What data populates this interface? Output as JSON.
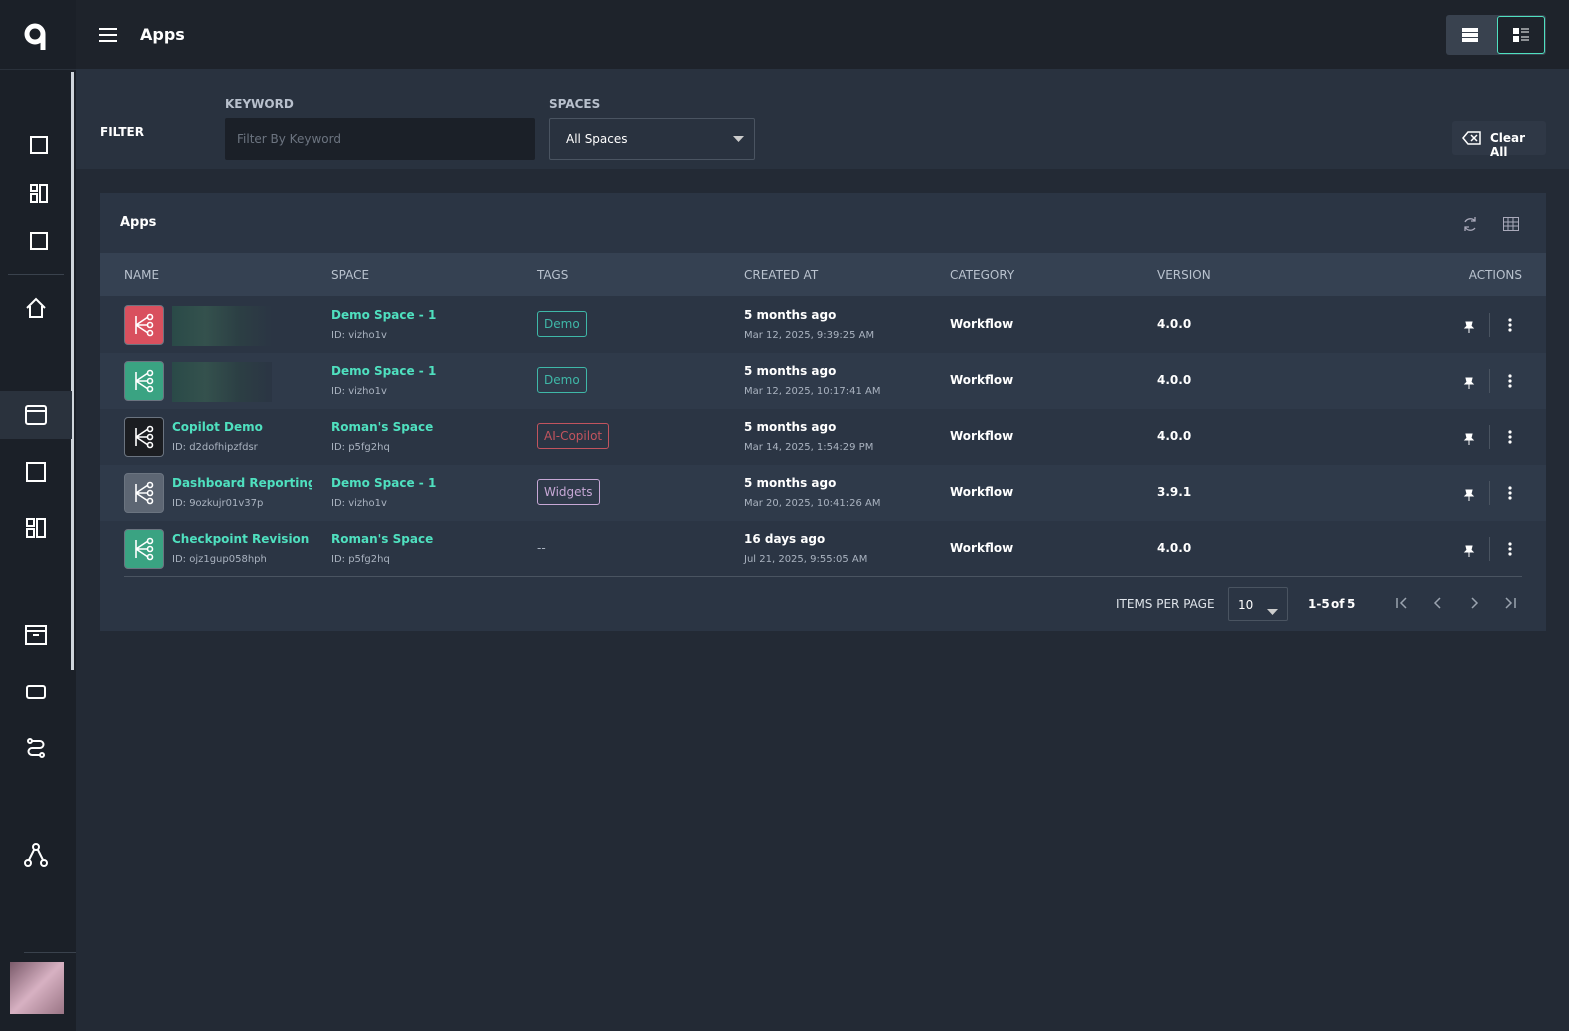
{
  "header": {
    "title": "Apps"
  },
  "filter": {
    "label": "FILTER",
    "keyword_label": "KEYWORD",
    "keyword_placeholder": "Filter By Keyword",
    "spaces_label": "SPACES",
    "spaces_value": "All Spaces",
    "clear": "Clear All"
  },
  "table": {
    "title": "Apps",
    "columns": [
      "NAME",
      "SPACE",
      "TAGS",
      "CREATED AT",
      "CATEGORY",
      "VERSION",
      "ACTIONS"
    ],
    "rows": [
      {
        "icon_color": "#d9505e",
        "space": "Demo Space - 1",
        "space_id": "ID: vizho1v",
        "tag": "Demo",
        "tag_color": "#3fb8a8",
        "created": "5 months ago",
        "created_at": "Mar 12, 2025, 9:39:25 AM",
        "category": "Workflow",
        "version": "4.0.0"
      },
      {
        "icon_color": "#3aa382",
        "space": "Demo Space - 1",
        "space_id": "ID: vizho1v",
        "tag": "Demo",
        "tag_color": "#3fb8a8",
        "created": "5 months ago",
        "created_at": "Mar 12, 2025, 10:17:41 AM",
        "category": "Workflow",
        "version": "4.0.0"
      },
      {
        "icon_color": "#1b1d21",
        "name": "Copilot Demo",
        "id": "ID: d2dofhipzfdsr",
        "space": "Roman's Space",
        "space_id": "ID: p5fg2hq",
        "tag": "AI-Copilot",
        "tag_color": "#c2545e",
        "created": "5 months ago",
        "created_at": "Mar 14, 2025, 1:54:29 PM",
        "category": "Workflow",
        "version": "4.0.0"
      },
      {
        "icon_color": "#5d6673",
        "name": "Dashboard Reporting Flo",
        "id": "ID: 9ozkujr01v37p",
        "space": "Demo Space - 1",
        "space_id": "ID: vizho1v",
        "tag": "Widgets",
        "tag_color": "#c7a8d6",
        "created": "5 months ago",
        "created_at": "Mar 20, 2025, 10:41:26 AM",
        "category": "Workflow",
        "version": "3.9.1"
      },
      {
        "icon_color": "#3aa382",
        "name": "Checkpoint Revision",
        "id": "ID: ojz1gup058hph",
        "space": "Roman's Space",
        "space_id": "ID: p5fg2hq",
        "tag": "--",
        "created": "16 days ago",
        "created_at": "Jul 21, 2025, 9:55:05 AM",
        "category": "Workflow",
        "version": "4.0.0"
      }
    ],
    "items_per_page_label": "ITEMS PER PAGE",
    "page_size": "10",
    "range": "1-5",
    "of": "of",
    "total": "5"
  }
}
